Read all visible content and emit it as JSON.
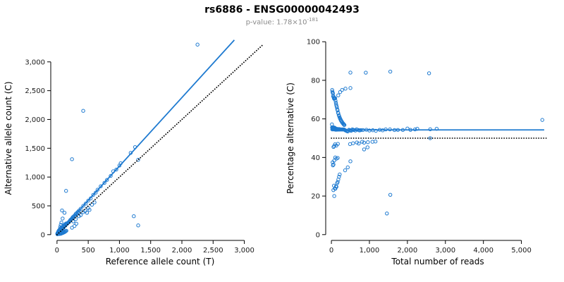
{
  "header": {
    "title": "rs6886 - ENSG00000042493",
    "subtitle_prefix": "p-value: ",
    "subtitle_base": "1.78×10",
    "subtitle_exponent": "-181"
  },
  "colors": {
    "accent_blue": "#1e7ad0",
    "identity_black": "#000000",
    "subtitle_gray": "#8a8a8a"
  },
  "chart_data": [
    {
      "type": "scatter",
      "panel": "left",
      "xlabel": "Reference allele count (T)",
      "ylabel": "Alternative allele count (C)",
      "xlim": [
        -100,
        3400
      ],
      "ylim": [
        -100,
        3450
      ],
      "xticks": [
        0,
        500,
        1000,
        1500,
        2000,
        2500,
        3000
      ],
      "xtick_labels": [
        "0",
        "500",
        "1,000",
        "1,500",
        "2,000",
        "2,500",
        "3,000"
      ],
      "yticks": [
        0,
        500,
        1000,
        1500,
        2000,
        2500,
        3000
      ],
      "ytick_labels": [
        "0",
        "500",
        "1,000",
        "1,500",
        "2,000",
        "2,500",
        "3,000"
      ],
      "grid": false,
      "point_color": "#1e7ad0",
      "lines": [
        {
          "name": "fitted-ratio-line",
          "slope": 1.19,
          "intercept": 0,
          "x_range": [
            0,
            2840
          ],
          "style": "solid",
          "color": "#1e7ad0"
        },
        {
          "name": "identity-line",
          "slope": 1,
          "intercept": 0,
          "x_range": [
            0,
            3300
          ],
          "style": "dotted",
          "color": "#000000"
        }
      ],
      "points_ref_alt": [
        [
          2250,
          3300
        ],
        [
          1300,
          1300
        ],
        [
          1250,
          1520
        ],
        [
          1180,
          1420
        ],
        [
          1230,
          320
        ],
        [
          1300,
          160
        ],
        [
          900,
          1100
        ],
        [
          1000,
          1200
        ],
        [
          950,
          1130
        ],
        [
          1020,
          1240
        ],
        [
          860,
          1020
        ],
        [
          800,
          950
        ],
        [
          760,
          900
        ],
        [
          700,
          840
        ],
        [
          650,
          780
        ],
        [
          620,
          730
        ],
        [
          580,
          690
        ],
        [
          540,
          630
        ],
        [
          500,
          590
        ],
        [
          460,
          540
        ],
        [
          420,
          500
        ],
        [
          380,
          450
        ],
        [
          340,
          400
        ],
        [
          300,
          360
        ],
        [
          260,
          310
        ],
        [
          420,
          2150
        ],
        [
          240,
          1310
        ],
        [
          145,
          760
        ],
        [
          80,
          420
        ],
        [
          120,
          380
        ],
        [
          90,
          280
        ],
        [
          70,
          210
        ],
        [
          60,
          170
        ],
        [
          50,
          130
        ],
        [
          160,
          190
        ],
        [
          170,
          200
        ],
        [
          180,
          210
        ],
        [
          190,
          220
        ],
        [
          200,
          230
        ],
        [
          210,
          250
        ],
        [
          220,
          260
        ],
        [
          230,
          270
        ],
        [
          240,
          280
        ],
        [
          250,
          300
        ],
        [
          270,
          320
        ],
        [
          290,
          340
        ],
        [
          310,
          370
        ],
        [
          330,
          390
        ],
        [
          355,
          420
        ],
        [
          300,
          270
        ],
        [
          350,
          320
        ],
        [
          420,
          390
        ],
        [
          500,
          460
        ],
        [
          560,
          520
        ],
        [
          600,
          560
        ],
        [
          260,
          230
        ],
        [
          380,
          340
        ],
        [
          450,
          410
        ],
        [
          310,
          190
        ],
        [
          280,
          150
        ],
        [
          240,
          120
        ],
        [
          520,
          430
        ],
        [
          480,
          380
        ],
        [
          60,
          15
        ],
        [
          80,
          25
        ],
        [
          100,
          33
        ],
        [
          40,
          12
        ],
        [
          120,
          45
        ],
        [
          140,
          60
        ],
        [
          50,
          17
        ],
        [
          90,
          30
        ],
        [
          110,
          40
        ],
        [
          130,
          52
        ],
        [
          150,
          68
        ],
        [
          70,
          22
        ],
        [
          6,
          8
        ],
        [
          8,
          10
        ],
        [
          10,
          12
        ],
        [
          12,
          15
        ],
        [
          14,
          17
        ],
        [
          16,
          20
        ],
        [
          18,
          22
        ],
        [
          20,
          25
        ],
        [
          22,
          27
        ],
        [
          24,
          30
        ],
        [
          26,
          32
        ],
        [
          28,
          34
        ],
        [
          30,
          36
        ],
        [
          32,
          40
        ],
        [
          34,
          42
        ],
        [
          36,
          44
        ],
        [
          38,
          46
        ],
        [
          40,
          48
        ],
        [
          42,
          52
        ],
        [
          44,
          54
        ],
        [
          46,
          56
        ],
        [
          48,
          58
        ],
        [
          50,
          60
        ],
        [
          52,
          62
        ],
        [
          55,
          66
        ],
        [
          56,
          68
        ],
        [
          60,
          72
        ],
        [
          62,
          74
        ],
        [
          65,
          78
        ],
        [
          66,
          80
        ],
        [
          70,
          84
        ],
        [
          72,
          86
        ],
        [
          75,
          90
        ],
        [
          76,
          92
        ],
        [
          80,
          96
        ],
        [
          82,
          98
        ],
        [
          85,
          102
        ],
        [
          86,
          104
        ],
        [
          90,
          108
        ],
        [
          92,
          110
        ],
        [
          95,
          114
        ],
        [
          96,
          116
        ],
        [
          100,
          120
        ],
        [
          105,
          126
        ],
        [
          110,
          132
        ],
        [
          115,
          138
        ],
        [
          120,
          144
        ],
        [
          125,
          150
        ],
        [
          130,
          156
        ],
        [
          135,
          162
        ],
        [
          140,
          168
        ],
        [
          145,
          174
        ],
        [
          150,
          180
        ],
        [
          94,
          140
        ],
        [
          98,
          145
        ],
        [
          104,
          150
        ],
        [
          108,
          155
        ],
        [
          114,
          160
        ],
        [
          118,
          165
        ],
        [
          124,
          170
        ],
        [
          128,
          175
        ],
        [
          134,
          180
        ],
        [
          138,
          185
        ],
        [
          144,
          190
        ],
        [
          148,
          195
        ],
        [
          5,
          15
        ],
        [
          7,
          20
        ],
        [
          9,
          25
        ],
        [
          11,
          30
        ],
        [
          13,
          33
        ],
        [
          15,
          38
        ],
        [
          17,
          42
        ],
        [
          19,
          46
        ],
        [
          21,
          50
        ],
        [
          23,
          55
        ],
        [
          25,
          60
        ],
        [
          27,
          65
        ],
        [
          29,
          70
        ],
        [
          33,
          75
        ],
        [
          37,
          80
        ],
        [
          41,
          85
        ],
        [
          45,
          90
        ],
        [
          49,
          95
        ],
        [
          54,
          100
        ],
        [
          58,
          105
        ],
        [
          64,
          110
        ],
        [
          68,
          115
        ],
        [
          74,
          120
        ],
        [
          78,
          125
        ],
        [
          84,
          130
        ],
        [
          88,
          135
        ],
        [
          20,
          12
        ],
        [
          25,
          14
        ],
        [
          30,
          25
        ],
        [
          35,
          20
        ],
        [
          40,
          34
        ],
        [
          45,
          28
        ],
        [
          50,
          44
        ],
        [
          60,
          40
        ],
        [
          70,
          60
        ],
        [
          80,
          52
        ],
        [
          90,
          80
        ],
        [
          100,
          66
        ]
      ]
    },
    {
      "type": "scatter",
      "panel": "right",
      "xlabel": "Total number of reads",
      "ylabel": "Percentage alternative (C)",
      "xlim": [
        -150,
        5750
      ],
      "ylim": [
        -3,
        103
      ],
      "xticks": [
        0,
        1000,
        2000,
        3000,
        4000,
        5000
      ],
      "xtick_labels": [
        "0",
        "1,000",
        "2,000",
        "3,000",
        "4,000",
        "5,000"
      ],
      "yticks": [
        0,
        20,
        40,
        60,
        80,
        100
      ],
      "ytick_labels": [
        "0",
        "20",
        "40",
        "60",
        "80",
        "100"
      ],
      "grid": false,
      "point_color": "#1e7ad0",
      "points_derivation": "x = ref + alt ; y = 100 * alt / (ref + alt), derived from left panel points_ref_alt",
      "lines": [
        {
          "name": "mean-percentage-line",
          "y": 54.3,
          "x_range": [
            0,
            5600
          ],
          "style": "solid",
          "color": "#1e7ad0"
        },
        {
          "name": "expected-50-line",
          "y": 50,
          "x_range": [
            0,
            5650
          ],
          "style": "dotted",
          "color": "#000000"
        }
      ]
    }
  ]
}
